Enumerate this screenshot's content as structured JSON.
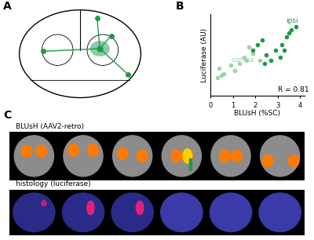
{
  "panel_labels": [
    "A",
    "B",
    "C"
  ],
  "chart_data": {
    "type": "scatter",
    "x_label": "BLUsH (%SC)",
    "y_label": "Luciferase (AU)",
    "xlim": [
      0,
      4.2
    ],
    "xticks": [
      0,
      1,
      2,
      3,
      4
    ],
    "ylim": [
      0,
      0.8
    ],
    "tick_labels": "x",
    "marker": "o",
    "annotation": "R = 0.81",
    "series": [
      {
        "name": "contra",
        "color": "#9fd4a3",
        "x": [
          0.3,
          0.5,
          0.6,
          0.4,
          0.9,
          1.1,
          1.3,
          1.5,
          1.7,
          1.9,
          2.2,
          1.6
        ],
        "values": [
          0.18,
          0.2,
          0.22,
          0.27,
          0.3,
          0.25,
          0.32,
          0.38,
          0.48,
          0.42,
          0.35,
          0.35
        ]
      },
      {
        "name": "ipsi",
        "color": "#1e9a4a",
        "x": [
          1.9,
          2.1,
          2.3,
          2.5,
          2.7,
          2.9,
          3.1,
          3.2,
          3.4,
          3.5,
          3.6,
          3.8,
          2.4,
          3.3
        ],
        "values": [
          0.45,
          0.5,
          0.55,
          0.4,
          0.35,
          0.45,
          0.38,
          0.5,
          0.58,
          0.62,
          0.65,
          0.68,
          0.32,
          0.45
        ]
      }
    ]
  },
  "image_rows": [
    "BLUsH (AAV2-retro)",
    "histology (luciferase)"
  ]
}
